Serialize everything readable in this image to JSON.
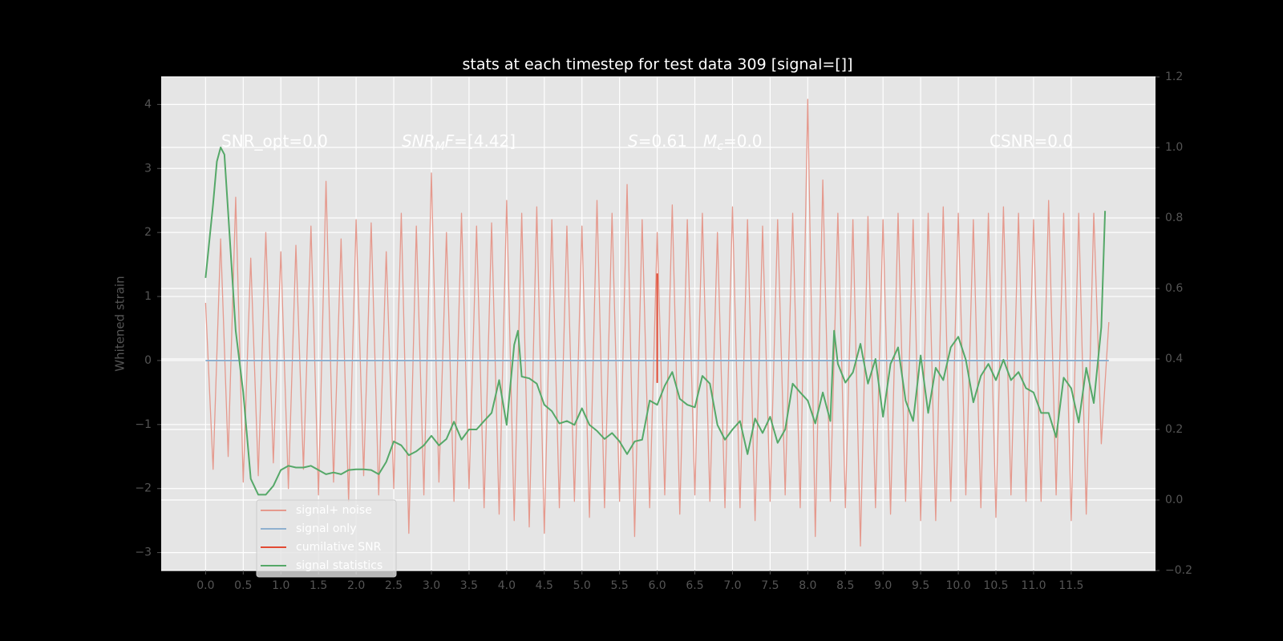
{
  "chart_data": {
    "type": "line",
    "title": "stats at each timestep for test data 309 [signal=[]]",
    "y_label": "Whitened strain",
    "xlim": [
      -0.59,
      12.62
    ],
    "ylim": [
      -3.28,
      4.43
    ],
    "y2lim": [
      -0.2,
      1.2
    ],
    "xticks": [
      {
        "value": 0,
        "label": "0.0"
      },
      0.5,
      {
        "value": 1,
        "label": "1.0"
      },
      1.5,
      {
        "value": 2,
        "label": "2.0"
      },
      2.5,
      {
        "value": 3,
        "label": "3.0"
      },
      3.5,
      {
        "value": 4,
        "label": "4.0"
      },
      4.5,
      {
        "value": 5,
        "label": "5.0"
      },
      5.5,
      {
        "value": 6,
        "label": "6.0"
      },
      6.5,
      {
        "value": 7,
        "label": "7.0"
      },
      7.5,
      {
        "value": 8,
        "label": "8.0"
      },
      8.5,
      {
        "value": 9,
        "label": "9.0"
      },
      9.5,
      {
        "value": 10,
        "label": "10.0"
      },
      10.5,
      {
        "value": 11,
        "label": "11.0"
      },
      11.5
    ],
    "yticks": [
      {
        "value": -3,
        "label": "−3"
      },
      {
        "value": -2,
        "label": "−2"
      },
      {
        "value": -1,
        "label": "−1"
      },
      0,
      1,
      2,
      3,
      4
    ],
    "y2ticks": [
      {
        "value": -0.2,
        "label": "−0.2"
      },
      {
        "value": 0,
        "label": "0.0"
      },
      0.2,
      0.4,
      0.6,
      0.8,
      {
        "value": 1,
        "label": "1.0"
      },
      1.2
    ],
    "grid": true,
    "legend": "lower left",
    "annotations": [
      [
        {
          "t": "SNR_opt=0.0"
        }
      ],
      [
        {
          "t": "SNR",
          "s": "it"
        },
        {
          "t": "M",
          "s": "sub"
        },
        {
          "t": "F",
          "s": "it"
        },
        {
          "t": "=[4.42]"
        }
      ],
      [
        {
          "t": "S",
          "s": "it"
        },
        {
          "t": "=0.61"
        }
      ],
      [
        {
          "t": "M",
          "s": "it"
        },
        {
          "t": "c",
          "s": "sub"
        },
        {
          "t": "=0.0"
        }
      ],
      [
        {
          "t": "CSNR=0.0"
        }
      ]
    ],
    "series": [
      {
        "name": "signal+ noise",
        "color": "#e5998d",
        "x": [
          0.0,
          0.1,
          0.2,
          0.3,
          0.4,
          0.5,
          0.6,
          0.7,
          0.8,
          0.9,
          1.0,
          1.1,
          1.2,
          1.3,
          1.4,
          1.5,
          1.6,
          1.7,
          1.8,
          1.9,
          2.0,
          2.1,
          2.2,
          2.3,
          2.4,
          2.5,
          2.6,
          2.7,
          2.8,
          2.9,
          3.0,
          3.1,
          3.2,
          3.3,
          3.4,
          3.5,
          3.6,
          3.7,
          3.8,
          3.9,
          4.0,
          4.1,
          4.2,
          4.3,
          4.4,
          4.5,
          4.6,
          4.7,
          4.8,
          4.9,
          5.0,
          5.1,
          5.2,
          5.3,
          5.4,
          5.5,
          5.6,
          5.7,
          5.8,
          5.9,
          6.0,
          6.1,
          6.2,
          6.3,
          6.4,
          6.5,
          6.6,
          6.7,
          6.8,
          6.9,
          7.0,
          7.1,
          7.2,
          7.3,
          7.4,
          7.5,
          7.6,
          7.7,
          7.8,
          7.9,
          8.0,
          8.1,
          8.2,
          8.3,
          8.4,
          8.5,
          8.6,
          8.7,
          8.8,
          8.9,
          9.0,
          9.1,
          9.2,
          9.3,
          9.4,
          9.5,
          9.6,
          9.7,
          9.8,
          9.9,
          10.0,
          10.1,
          10.2,
          10.3,
          10.4,
          10.5,
          10.6,
          10.7,
          10.8,
          10.9,
          11.0,
          11.1,
          11.2,
          11.3,
          11.4,
          11.5,
          11.6,
          11.7,
          11.8,
          11.9,
          12.0
        ],
        "values": [
          0.9,
          -1.7,
          1.9,
          -1.5,
          2.55,
          -1.9,
          1.6,
          -1.8,
          2.0,
          -1.6,
          1.7,
          -2.0,
          1.8,
          -1.7,
          2.1,
          -2.1,
          2.8,
          -1.9,
          1.9,
          -2.2,
          2.2,
          -1.8,
          2.15,
          -2.1,
          1.7,
          -2.0,
          2.3,
          -2.7,
          2.1,
          -2.1,
          2.93,
          -1.9,
          2.0,
          -2.2,
          2.3,
          -2.0,
          2.1,
          -2.3,
          2.15,
          -2.4,
          2.5,
          -2.5,
          2.3,
          -2.6,
          2.4,
          -2.7,
          2.2,
          -2.3,
          2.1,
          -2.2,
          2.1,
          -2.45,
          2.5,
          -2.3,
          2.3,
          -2.2,
          2.75,
          -2.75,
          2.2,
          -2.3,
          2.0,
          -2.1,
          2.43,
          -2.4,
          2.2,
          -2.1,
          2.3,
          -2.2,
          2.0,
          -2.3,
          2.4,
          -2.3,
          2.2,
          -2.5,
          2.1,
          -2.2,
          2.2,
          -2.1,
          2.3,
          -2.3,
          4.08,
          -2.75,
          2.82,
          -2.2,
          2.3,
          -2.3,
          2.2,
          -2.9,
          2.25,
          -2.3,
          2.2,
          -2.4,
          2.3,
          -2.2,
          2.2,
          -2.5,
          2.3,
          -2.5,
          2.4,
          -2.2,
          2.3,
          -2.1,
          2.2,
          -2.3,
          2.3,
          -2.45,
          2.4,
          -2.1,
          2.3,
          -2.2,
          2.2,
          -2.2,
          2.5,
          -2.1,
          2.3,
          -2.5,
          2.3,
          -2.4,
          2.3,
          -1.3,
          0.6
        ]
      },
      {
        "name": "signal only",
        "color": "#8fb0cf",
        "x": [
          0.0,
          12.0
        ],
        "values": [
          0,
          0
        ]
      },
      {
        "name": "cumilative SNR",
        "color": "#e24a33",
        "x": [
          6.0,
          6.0
        ],
        "values": [
          1.36,
          -0.35
        ]
      },
      {
        "name": "signal statistics",
        "color": "#55a868",
        "axis": "y2",
        "x": [
          0.0,
          0.1,
          0.15,
          0.2,
          0.25,
          0.3,
          0.4,
          0.5,
          0.6,
          0.7,
          0.8,
          0.9,
          1.0,
          1.1,
          1.2,
          1.3,
          1.4,
          1.5,
          1.6,
          1.7,
          1.8,
          1.9,
          2.0,
          2.1,
          2.2,
          2.3,
          2.4,
          2.5,
          2.6,
          2.7,
          2.8,
          2.9,
          3.0,
          3.1,
          3.2,
          3.3,
          3.4,
          3.5,
          3.6,
          3.7,
          3.8,
          3.9,
          4.0,
          4.1,
          4.15,
          4.2,
          4.3,
          4.4,
          4.5,
          4.6,
          4.7,
          4.8,
          4.9,
          5.0,
          5.1,
          5.2,
          5.3,
          5.4,
          5.5,
          5.6,
          5.7,
          5.8,
          5.9,
          6.0,
          6.1,
          6.2,
          6.3,
          6.4,
          6.5,
          6.6,
          6.7,
          6.8,
          6.9,
          7.0,
          7.1,
          7.2,
          7.3,
          7.4,
          7.5,
          7.6,
          7.7,
          7.8,
          7.9,
          8.0,
          8.1,
          8.2,
          8.3,
          8.35,
          8.4,
          8.5,
          8.6,
          8.7,
          8.8,
          8.9,
          9.0,
          9.1,
          9.2,
          9.3,
          9.4,
          9.5,
          9.6,
          9.7,
          9.8,
          9.9,
          10.0,
          10.1,
          10.2,
          10.3,
          10.4,
          10.5,
          10.6,
          10.7,
          10.8,
          10.9,
          11.0,
          11.1,
          11.2,
          11.3,
          11.4,
          11.5,
          11.6,
          11.7,
          11.8,
          11.9,
          11.95
        ],
        "values": [
          0.63,
          0.84,
          0.96,
          1.0,
          0.98,
          0.815,
          0.48,
          0.305,
          0.06,
          0.015,
          0.015,
          0.04,
          0.085,
          0.097,
          0.092,
          0.092,
          0.097,
          0.085,
          0.073,
          0.078,
          0.073,
          0.085,
          0.087,
          0.087,
          0.085,
          0.073,
          0.108,
          0.166,
          0.155,
          0.127,
          0.138,
          0.155,
          0.182,
          0.155,
          0.173,
          0.222,
          0.171,
          0.2,
          0.2,
          0.224,
          0.247,
          0.34,
          0.213,
          0.44,
          0.48,
          0.35,
          0.345,
          0.33,
          0.27,
          0.252,
          0.217,
          0.224,
          0.213,
          0.26,
          0.213,
          0.196,
          0.173,
          0.19,
          0.166,
          0.13,
          0.166,
          0.171,
          0.282,
          0.27,
          0.324,
          0.363,
          0.287,
          0.27,
          0.263,
          0.352,
          0.33,
          0.213,
          0.171,
          0.2,
          0.224,
          0.13,
          0.231,
          0.19,
          0.236,
          0.162,
          0.2,
          0.33,
          0.305,
          0.282,
          0.217,
          0.305,
          0.224,
          0.48,
          0.386,
          0.333,
          0.362,
          0.443,
          0.33,
          0.4,
          0.236,
          0.386,
          0.433,
          0.282,
          0.224,
          0.41,
          0.247,
          0.375,
          0.34,
          0.433,
          0.463,
          0.398,
          0.277,
          0.352,
          0.386,
          0.34,
          0.398,
          0.34,
          0.363,
          0.317,
          0.305,
          0.247,
          0.247,
          0.178,
          0.347,
          0.317,
          0.22,
          0.375,
          0.275,
          0.49,
          0.82
        ]
      }
    ]
  }
}
